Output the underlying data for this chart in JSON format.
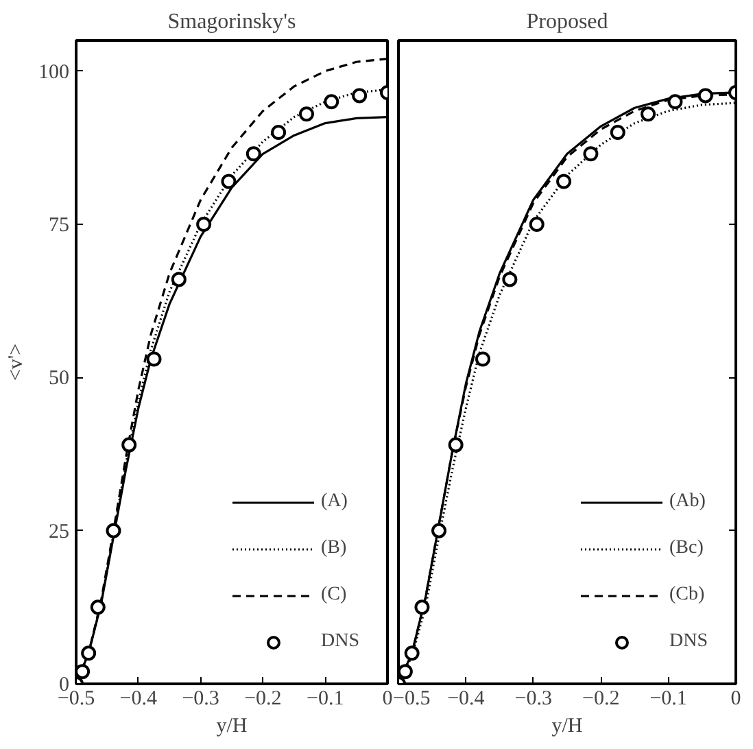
{
  "chart_data": [
    {
      "type": "line",
      "title": "Smagorinsky's",
      "xlabel": "y/H",
      "ylabel": "<v'>",
      "xlim": [
        -0.5,
        0
      ],
      "ylim": [
        0,
        105
      ],
      "xticks": [
        -0.5,
        -0.4,
        -0.3,
        -0.2,
        -0.1,
        0
      ],
      "yticks": [
        0,
        25,
        50,
        75,
        100
      ],
      "grid": false,
      "legend": "bottom right",
      "x": [
        -0.5,
        -0.48,
        -0.46,
        -0.44,
        -0.42,
        -0.4,
        -0.38,
        -0.35,
        -0.3,
        -0.25,
        -0.2,
        -0.15,
        -0.1,
        -0.05,
        0
      ],
      "series": [
        {
          "name": "(A)",
          "color": "#000000",
          "line_style": "solid",
          "values": [
            0,
            5,
            13,
            24,
            35,
            45,
            53,
            62,
            73,
            81,
            86.5,
            89.5,
            91.5,
            92.3,
            92.5
          ]
        },
        {
          "name": "(B)",
          "color": "#000000",
          "line_style": "dotted",
          "values": [
            0,
            5,
            13,
            24.5,
            36,
            46,
            54.5,
            64,
            75,
            83,
            88.5,
            92.5,
            95,
            96.5,
            97
          ]
        },
        {
          "name": "(C)",
          "color": "#000000",
          "line_style": "dashed",
          "values": [
            0,
            5,
            13.5,
            25,
            37,
            48,
            57,
            67,
            79,
            87.5,
            93.5,
            97.5,
            100,
            101.5,
            102
          ]
        },
        {
          "name": "DNS",
          "type": "scatter",
          "marker": "circle",
          "color": "#000000",
          "x": [
            -0.5,
            -0.49,
            -0.48,
            -0.465,
            -0.44,
            -0.415,
            -0.375,
            -0.335,
            -0.295,
            -0.255,
            -0.215,
            -0.175,
            -0.13,
            -0.09,
            -0.045,
            0
          ],
          "values": [
            0,
            2,
            5,
            12.5,
            25,
            39,
            53,
            66,
            75,
            82,
            86.5,
            90,
            93,
            95,
            96,
            96.5
          ]
        }
      ]
    },
    {
      "type": "line",
      "title": "Proposed",
      "xlabel": "y/H",
      "xlim": [
        -0.5,
        0
      ],
      "ylim": [
        0,
        105
      ],
      "xticks": [
        -0.5,
        -0.4,
        -0.3,
        -0.2,
        -0.1,
        0
      ],
      "yticks": [
        0,
        25,
        50,
        75,
        100
      ],
      "tick_labels": "x",
      "grid": false,
      "legend": "bottom right",
      "x": [
        -0.5,
        -0.48,
        -0.46,
        -0.44,
        -0.42,
        -0.4,
        -0.38,
        -0.35,
        -0.3,
        -0.25,
        -0.2,
        -0.15,
        -0.1,
        -0.05,
        0
      ],
      "series": [
        {
          "name": "(Ab)",
          "color": "#000000",
          "line_style": "solid",
          "values": [
            0,
            5,
            14,
            26,
            38,
            49,
            57.5,
            67,
            79,
            86.5,
            91,
            94,
            95.5,
            96.3,
            96.5
          ]
        },
        {
          "name": "(Bc)",
          "color": "#000000",
          "line_style": "dotted",
          "values": [
            0,
            4.5,
            12.5,
            24,
            35,
            45,
            54,
            63.5,
            75.5,
            83,
            88,
            91.5,
            93.5,
            94.5,
            94.8
          ]
        },
        {
          "name": "(Cb)",
          "color": "#000000",
          "line_style": "dashed",
          "values": [
            0,
            5,
            14,
            26,
            38,
            48.5,
            57,
            66.5,
            78.5,
            86,
            90.5,
            93.5,
            95.3,
            96,
            96.2
          ]
        },
        {
          "name": "DNS",
          "type": "scatter",
          "marker": "circle",
          "color": "#000000",
          "x": [
            -0.5,
            -0.49,
            -0.48,
            -0.465,
            -0.44,
            -0.415,
            -0.375,
            -0.335,
            -0.295,
            -0.255,
            -0.215,
            -0.175,
            -0.13,
            -0.09,
            -0.045,
            0
          ],
          "values": [
            0,
            2,
            5,
            12.5,
            25,
            39,
            53,
            66,
            75,
            82,
            86.5,
            90,
            93,
            95,
            96,
            96.5
          ]
        }
      ]
    }
  ]
}
